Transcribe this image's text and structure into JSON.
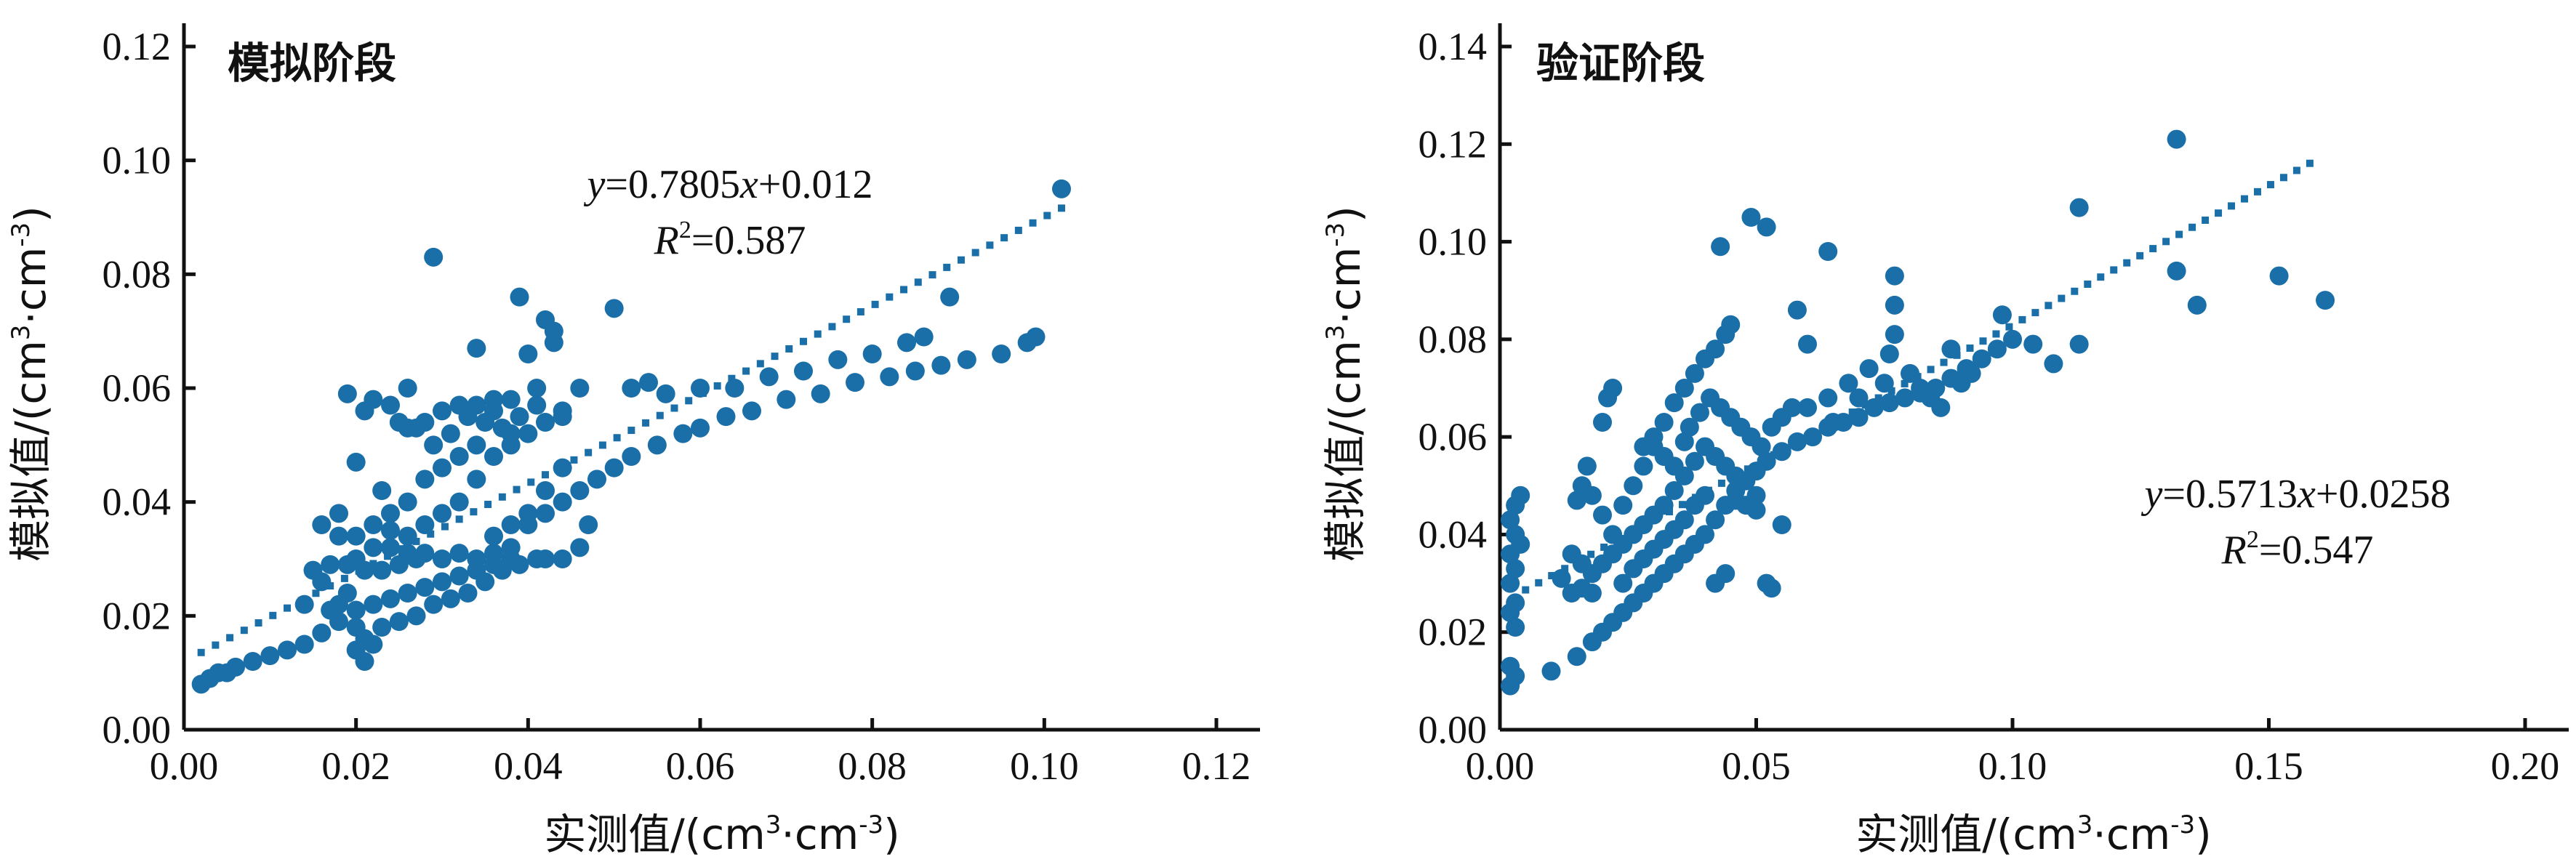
{
  "chart_data": [
    {
      "type": "scatter",
      "title": "模拟阶段",
      "xlabel_prefix": "实测值/(cm",
      "xlabel_mid": "·cm",
      "xlabel_suffix": ")",
      "ylabel_prefix": "模拟值/(cm",
      "ylabel_mid": "·cm",
      "ylabel_suffix": ")",
      "unit_sup_pos": "3",
      "unit_sup_neg": "-3",
      "xlim": [
        0,
        0.12
      ],
      "ylim": [
        0,
        0.12
      ],
      "xticks": [
        "0.00",
        "0.02",
        "0.04",
        "0.06",
        "0.08",
        "0.10",
        "0.12"
      ],
      "yticks": [
        "0.00",
        "0.02",
        "0.04",
        "0.06",
        "0.08",
        "0.10",
        "0.12"
      ],
      "fit": {
        "slope": 0.7805,
        "intercept": 0.012,
        "x_range": [
          0.002,
          0.102
        ]
      },
      "equation": {
        "y": "y",
        "eq1": "=0.7805",
        "x": "x",
        "eq2": "+0.012",
        "r": "R",
        "r_sup": "2",
        "r_val": "=0.587"
      },
      "marker_color": "#1a6fa8",
      "points": [
        [
          0.002,
          0.008
        ],
        [
          0.003,
          0.009
        ],
        [
          0.004,
          0.01
        ],
        [
          0.005,
          0.01
        ],
        [
          0.006,
          0.011
        ],
        [
          0.008,
          0.012
        ],
        [
          0.01,
          0.013
        ],
        [
          0.012,
          0.014
        ],
        [
          0.014,
          0.015
        ],
        [
          0.016,
          0.017
        ],
        [
          0.018,
          0.019
        ],
        [
          0.02,
          0.021
        ],
        [
          0.022,
          0.022
        ],
        [
          0.024,
          0.023
        ],
        [
          0.026,
          0.024
        ],
        [
          0.028,
          0.025
        ],
        [
          0.03,
          0.026
        ],
        [
          0.032,
          0.027
        ],
        [
          0.034,
          0.028
        ],
        [
          0.036,
          0.029
        ],
        [
          0.038,
          0.03
        ],
        [
          0.04,
          0.036
        ],
        [
          0.042,
          0.038
        ],
        [
          0.044,
          0.04
        ],
        [
          0.046,
          0.042
        ],
        [
          0.048,
          0.044
        ],
        [
          0.05,
          0.046
        ],
        [
          0.052,
          0.048
        ],
        [
          0.055,
          0.05
        ],
        [
          0.058,
          0.052
        ],
        [
          0.06,
          0.053
        ],
        [
          0.063,
          0.055
        ],
        [
          0.066,
          0.056
        ],
        [
          0.07,
          0.058
        ],
        [
          0.074,
          0.059
        ],
        [
          0.078,
          0.061
        ],
        [
          0.082,
          0.062
        ],
        [
          0.085,
          0.063
        ],
        [
          0.088,
          0.064
        ],
        [
          0.091,
          0.065
        ],
        [
          0.095,
          0.066
        ],
        [
          0.098,
          0.068
        ],
        [
          0.099,
          0.069
        ],
        [
          0.102,
          0.095
        ],
        [
          0.086,
          0.069
        ],
        [
          0.089,
          0.076
        ],
        [
          0.084,
          0.068
        ],
        [
          0.08,
          0.066
        ],
        [
          0.076,
          0.065
        ],
        [
          0.072,
          0.063
        ],
        [
          0.068,
          0.062
        ],
        [
          0.064,
          0.06
        ],
        [
          0.06,
          0.06
        ],
        [
          0.056,
          0.059
        ],
        [
          0.052,
          0.06
        ],
        [
          0.05,
          0.074
        ],
        [
          0.054,
          0.061
        ],
        [
          0.046,
          0.06
        ],
        [
          0.044,
          0.055
        ],
        [
          0.043,
          0.07
        ],
        [
          0.042,
          0.072
        ],
        [
          0.043,
          0.068
        ],
        [
          0.04,
          0.066
        ],
        [
          0.039,
          0.076
        ],
        [
          0.041,
          0.06
        ],
        [
          0.038,
          0.058
        ],
        [
          0.036,
          0.058
        ],
        [
          0.034,
          0.057
        ],
        [
          0.032,
          0.057
        ],
        [
          0.03,
          0.056
        ],
        [
          0.028,
          0.054
        ],
        [
          0.026,
          0.053
        ],
        [
          0.029,
          0.083
        ],
        [
          0.034,
          0.067
        ],
        [
          0.036,
          0.056
        ],
        [
          0.038,
          0.052
        ],
        [
          0.034,
          0.05
        ],
        [
          0.032,
          0.048
        ],
        [
          0.03,
          0.046
        ],
        [
          0.028,
          0.044
        ],
        [
          0.026,
          0.04
        ],
        [
          0.024,
          0.038
        ],
        [
          0.022,
          0.058
        ],
        [
          0.019,
          0.059
        ],
        [
          0.021,
          0.056
        ],
        [
          0.024,
          0.057
        ],
        [
          0.023,
          0.042
        ],
        [
          0.02,
          0.047
        ],
        [
          0.018,
          0.038
        ],
        [
          0.016,
          0.036
        ],
        [
          0.018,
          0.034
        ],
        [
          0.02,
          0.034
        ],
        [
          0.022,
          0.032
        ],
        [
          0.024,
          0.032
        ],
        [
          0.026,
          0.031
        ],
        [
          0.028,
          0.031
        ],
        [
          0.03,
          0.03
        ],
        [
          0.032,
          0.031
        ],
        [
          0.034,
          0.03
        ],
        [
          0.036,
          0.031
        ],
        [
          0.038,
          0.032
        ],
        [
          0.036,
          0.034
        ],
        [
          0.038,
          0.036
        ],
        [
          0.04,
          0.038
        ],
        [
          0.042,
          0.042
        ],
        [
          0.044,
          0.046
        ],
        [
          0.042,
          0.03
        ],
        [
          0.044,
          0.03
        ],
        [
          0.046,
          0.032
        ],
        [
          0.047,
          0.036
        ],
        [
          0.015,
          0.028
        ],
        [
          0.017,
          0.029
        ],
        [
          0.019,
          0.029
        ],
        [
          0.021,
          0.028
        ],
        [
          0.023,
          0.028
        ],
        [
          0.025,
          0.029
        ],
        [
          0.027,
          0.03
        ],
        [
          0.019,
          0.024
        ],
        [
          0.02,
          0.018
        ],
        [
          0.021,
          0.016
        ],
        [
          0.02,
          0.014
        ],
        [
          0.022,
          0.015
        ],
        [
          0.021,
          0.012
        ],
        [
          0.023,
          0.018
        ],
        [
          0.025,
          0.019
        ],
        [
          0.027,
          0.02
        ],
        [
          0.029,
          0.022
        ],
        [
          0.031,
          0.023
        ],
        [
          0.033,
          0.024
        ],
        [
          0.035,
          0.026
        ],
        [
          0.037,
          0.028
        ],
        [
          0.039,
          0.029
        ],
        [
          0.041,
          0.03
        ],
        [
          0.02,
          0.03
        ],
        [
          0.022,
          0.036
        ],
        [
          0.024,
          0.035
        ],
        [
          0.026,
          0.034
        ],
        [
          0.028,
          0.036
        ],
        [
          0.03,
          0.038
        ],
        [
          0.032,
          0.04
        ],
        [
          0.034,
          0.044
        ],
        [
          0.036,
          0.048
        ],
        [
          0.038,
          0.05
        ],
        [
          0.04,
          0.052
        ],
        [
          0.042,
          0.054
        ],
        [
          0.044,
          0.056
        ],
        [
          0.026,
          0.06
        ],
        [
          0.025,
          0.054
        ],
        [
          0.027,
          0.053
        ],
        [
          0.029,
          0.05
        ],
        [
          0.031,
          0.052
        ],
        [
          0.033,
          0.055
        ],
        [
          0.035,
          0.054
        ],
        [
          0.037,
          0.053
        ],
        [
          0.039,
          0.055
        ],
        [
          0.041,
          0.057
        ],
        [
          0.017,
          0.021
        ],
        [
          0.018,
          0.022
        ],
        [
          0.016,
          0.026
        ],
        [
          0.014,
          0.022
        ]
      ]
    },
    {
      "type": "scatter",
      "title": "验证阶段",
      "xlabel_prefix": "实测值/(cm",
      "xlabel_mid": "·cm",
      "xlabel_suffix": ")",
      "ylabel_prefix": "模拟值/(cm",
      "ylabel_mid": "·cm",
      "ylabel_suffix": ")",
      "unit_sup_pos": "3",
      "unit_sup_neg": "-3",
      "xlim": [
        0,
        0.2
      ],
      "ylim": [
        0,
        0.14
      ],
      "xticks": [
        "0.00",
        "0.05",
        "0.10",
        "0.15",
        "0.20"
      ],
      "yticks": [
        "0.00",
        "0.02",
        "0.04",
        "0.06",
        "0.08",
        "0.10",
        "0.12",
        "0.14"
      ],
      "fit": {
        "slope": 0.5713,
        "intercept": 0.0258,
        "x_range": [
          0.005,
          0.158
        ]
      },
      "equation": {
        "y": "y",
        "eq1": "=0.5713",
        "x": "x",
        "eq2": "+0.0258",
        "r": "R",
        "r_sup": "2",
        "r_val": "=0.547"
      },
      "marker_color": "#1a6fa8",
      "points": [
        [
          0.002,
          0.009
        ],
        [
          0.003,
          0.011
        ],
        [
          0.002,
          0.013
        ],
        [
          0.003,
          0.021
        ],
        [
          0.002,
          0.024
        ],
        [
          0.003,
          0.026
        ],
        [
          0.002,
          0.03
        ],
        [
          0.003,
          0.033
        ],
        [
          0.002,
          0.036
        ],
        [
          0.003,
          0.04
        ],
        [
          0.002,
          0.043
        ],
        [
          0.003,
          0.046
        ],
        [
          0.004,
          0.048
        ],
        [
          0.004,
          0.038
        ],
        [
          0.01,
          0.012
        ],
        [
          0.015,
          0.015
        ],
        [
          0.018,
          0.018
        ],
        [
          0.02,
          0.02
        ],
        [
          0.022,
          0.022
        ],
        [
          0.024,
          0.024
        ],
        [
          0.026,
          0.026
        ],
        [
          0.028,
          0.028
        ],
        [
          0.03,
          0.03
        ],
        [
          0.032,
          0.032
        ],
        [
          0.034,
          0.034
        ],
        [
          0.036,
          0.036
        ],
        [
          0.038,
          0.038
        ],
        [
          0.04,
          0.04
        ],
        [
          0.042,
          0.043
        ],
        [
          0.044,
          0.046
        ],
        [
          0.046,
          0.049
        ],
        [
          0.048,
          0.051
        ],
        [
          0.05,
          0.053
        ],
        [
          0.052,
          0.055
        ],
        [
          0.055,
          0.057
        ],
        [
          0.058,
          0.059
        ],
        [
          0.061,
          0.06
        ],
        [
          0.064,
          0.062
        ],
        [
          0.067,
          0.063
        ],
        [
          0.07,
          0.064
        ],
        [
          0.073,
          0.066
        ],
        [
          0.076,
          0.067
        ],
        [
          0.079,
          0.068
        ],
        [
          0.082,
          0.069
        ],
        [
          0.085,
          0.07
        ],
        [
          0.088,
          0.072
        ],
        [
          0.091,
          0.074
        ],
        [
          0.094,
          0.076
        ],
        [
          0.097,
          0.078
        ],
        [
          0.1,
          0.08
        ],
        [
          0.104,
          0.079
        ],
        [
          0.108,
          0.075
        ],
        [
          0.113,
          0.079
        ],
        [
          0.113,
          0.107
        ],
        [
          0.132,
          0.121
        ],
        [
          0.132,
          0.094
        ],
        [
          0.136,
          0.087
        ],
        [
          0.152,
          0.093
        ],
        [
          0.161,
          0.088
        ],
        [
          0.098,
          0.085
        ],
        [
          0.077,
          0.093
        ],
        [
          0.077,
          0.087
        ],
        [
          0.077,
          0.081
        ],
        [
          0.076,
          0.077
        ],
        [
          0.072,
          0.074
        ],
        [
          0.068,
          0.071
        ],
        [
          0.064,
          0.068
        ],
        [
          0.06,
          0.066
        ],
        [
          0.058,
          0.086
        ],
        [
          0.06,
          0.079
        ],
        [
          0.064,
          0.098
        ],
        [
          0.052,
          0.103
        ],
        [
          0.049,
          0.105
        ],
        [
          0.043,
          0.099
        ],
        [
          0.045,
          0.083
        ],
        [
          0.044,
          0.081
        ],
        [
          0.042,
          0.078
        ],
        [
          0.04,
          0.076
        ],
        [
          0.038,
          0.073
        ],
        [
          0.036,
          0.07
        ],
        [
          0.034,
          0.067
        ],
        [
          0.032,
          0.063
        ],
        [
          0.03,
          0.06
        ],
        [
          0.028,
          0.058
        ],
        [
          0.037,
          0.062
        ],
        [
          0.039,
          0.065
        ],
        [
          0.041,
          0.068
        ],
        [
          0.043,
          0.066
        ],
        [
          0.045,
          0.064
        ],
        [
          0.047,
          0.062
        ],
        [
          0.049,
          0.06
        ],
        [
          0.051,
          0.058
        ],
        [
          0.053,
          0.062
        ],
        [
          0.055,
          0.064
        ],
        [
          0.057,
          0.066
        ],
        [
          0.04,
          0.058
        ],
        [
          0.042,
          0.056
        ],
        [
          0.044,
          0.054
        ],
        [
          0.046,
          0.052
        ],
        [
          0.038,
          0.055
        ],
        [
          0.036,
          0.052
        ],
        [
          0.034,
          0.049
        ],
        [
          0.032,
          0.046
        ],
        [
          0.03,
          0.044
        ],
        [
          0.028,
          0.042
        ],
        [
          0.026,
          0.04
        ],
        [
          0.024,
          0.038
        ],
        [
          0.022,
          0.036
        ],
        [
          0.02,
          0.034
        ],
        [
          0.018,
          0.032
        ],
        [
          0.016,
          0.034
        ],
        [
          0.014,
          0.036
        ],
        [
          0.012,
          0.031
        ],
        [
          0.014,
          0.028
        ],
        [
          0.016,
          0.029
        ],
        [
          0.018,
          0.028
        ],
        [
          0.015,
          0.047
        ],
        [
          0.016,
          0.05
        ],
        [
          0.017,
          0.054
        ],
        [
          0.018,
          0.048
        ],
        [
          0.02,
          0.044
        ],
        [
          0.022,
          0.04
        ],
        [
          0.02,
          0.063
        ],
        [
          0.021,
          0.068
        ],
        [
          0.022,
          0.07
        ],
        [
          0.024,
          0.046
        ],
        [
          0.026,
          0.05
        ],
        [
          0.028,
          0.054
        ],
        [
          0.03,
          0.058
        ],
        [
          0.032,
          0.056
        ],
        [
          0.034,
          0.054
        ],
        [
          0.036,
          0.059
        ],
        [
          0.024,
          0.03
        ],
        [
          0.026,
          0.033
        ],
        [
          0.028,
          0.035
        ],
        [
          0.03,
          0.037
        ],
        [
          0.032,
          0.039
        ],
        [
          0.034,
          0.041
        ],
        [
          0.036,
          0.043
        ],
        [
          0.038,
          0.046
        ],
        [
          0.04,
          0.048
        ],
        [
          0.042,
          0.03
        ],
        [
          0.044,
          0.032
        ],
        [
          0.052,
          0.03
        ],
        [
          0.053,
          0.029
        ],
        [
          0.055,
          0.042
        ],
        [
          0.05,
          0.045
        ],
        [
          0.048,
          0.046
        ],
        [
          0.046,
          0.047
        ],
        [
          0.05,
          0.048
        ],
        [
          0.065,
          0.063
        ],
        [
          0.07,
          0.068
        ],
        [
          0.075,
          0.071
        ],
        [
          0.08,
          0.073
        ],
        [
          0.082,
          0.07
        ],
        [
          0.084,
          0.068
        ],
        [
          0.086,
          0.066
        ],
        [
          0.088,
          0.078
        ],
        [
          0.09,
          0.071
        ],
        [
          0.092,
          0.073
        ]
      ]
    }
  ]
}
